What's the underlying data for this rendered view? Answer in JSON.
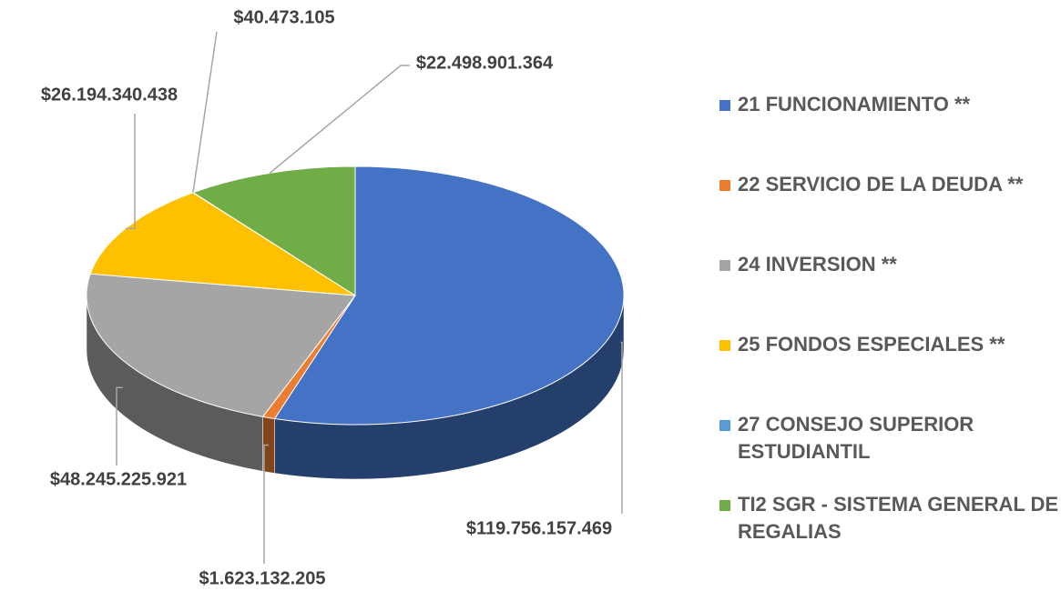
{
  "chart_data": {
    "type": "pie",
    "categories": [
      "21 FUNCIONAMIENTO **",
      "22 SERVICIO DE LA DEUDA **",
      "24 INVERSION **",
      "25 FONDOS ESPECIALES **",
      "27 CONSEJO SUPERIOR ESTUDIANTIL",
      "TI2 SGR - SISTEMA GENERAL DE REGALIAS"
    ],
    "values": [
      119756157469,
      1623132205,
      48245225921,
      26194340438,
      40473105,
      22498901364
    ],
    "value_labels": [
      "$119.756.157.469",
      "$1.623.132.205",
      "$48.245.225.921",
      "$26.194.340.438",
      "$40.473.105",
      "$22.498.901.364"
    ],
    "colors": [
      "#4472c4",
      "#ed7d31",
      "#a5a5a5",
      "#ffc000",
      "#5b9bd5",
      "#70ad47"
    ],
    "legend": "right"
  }
}
